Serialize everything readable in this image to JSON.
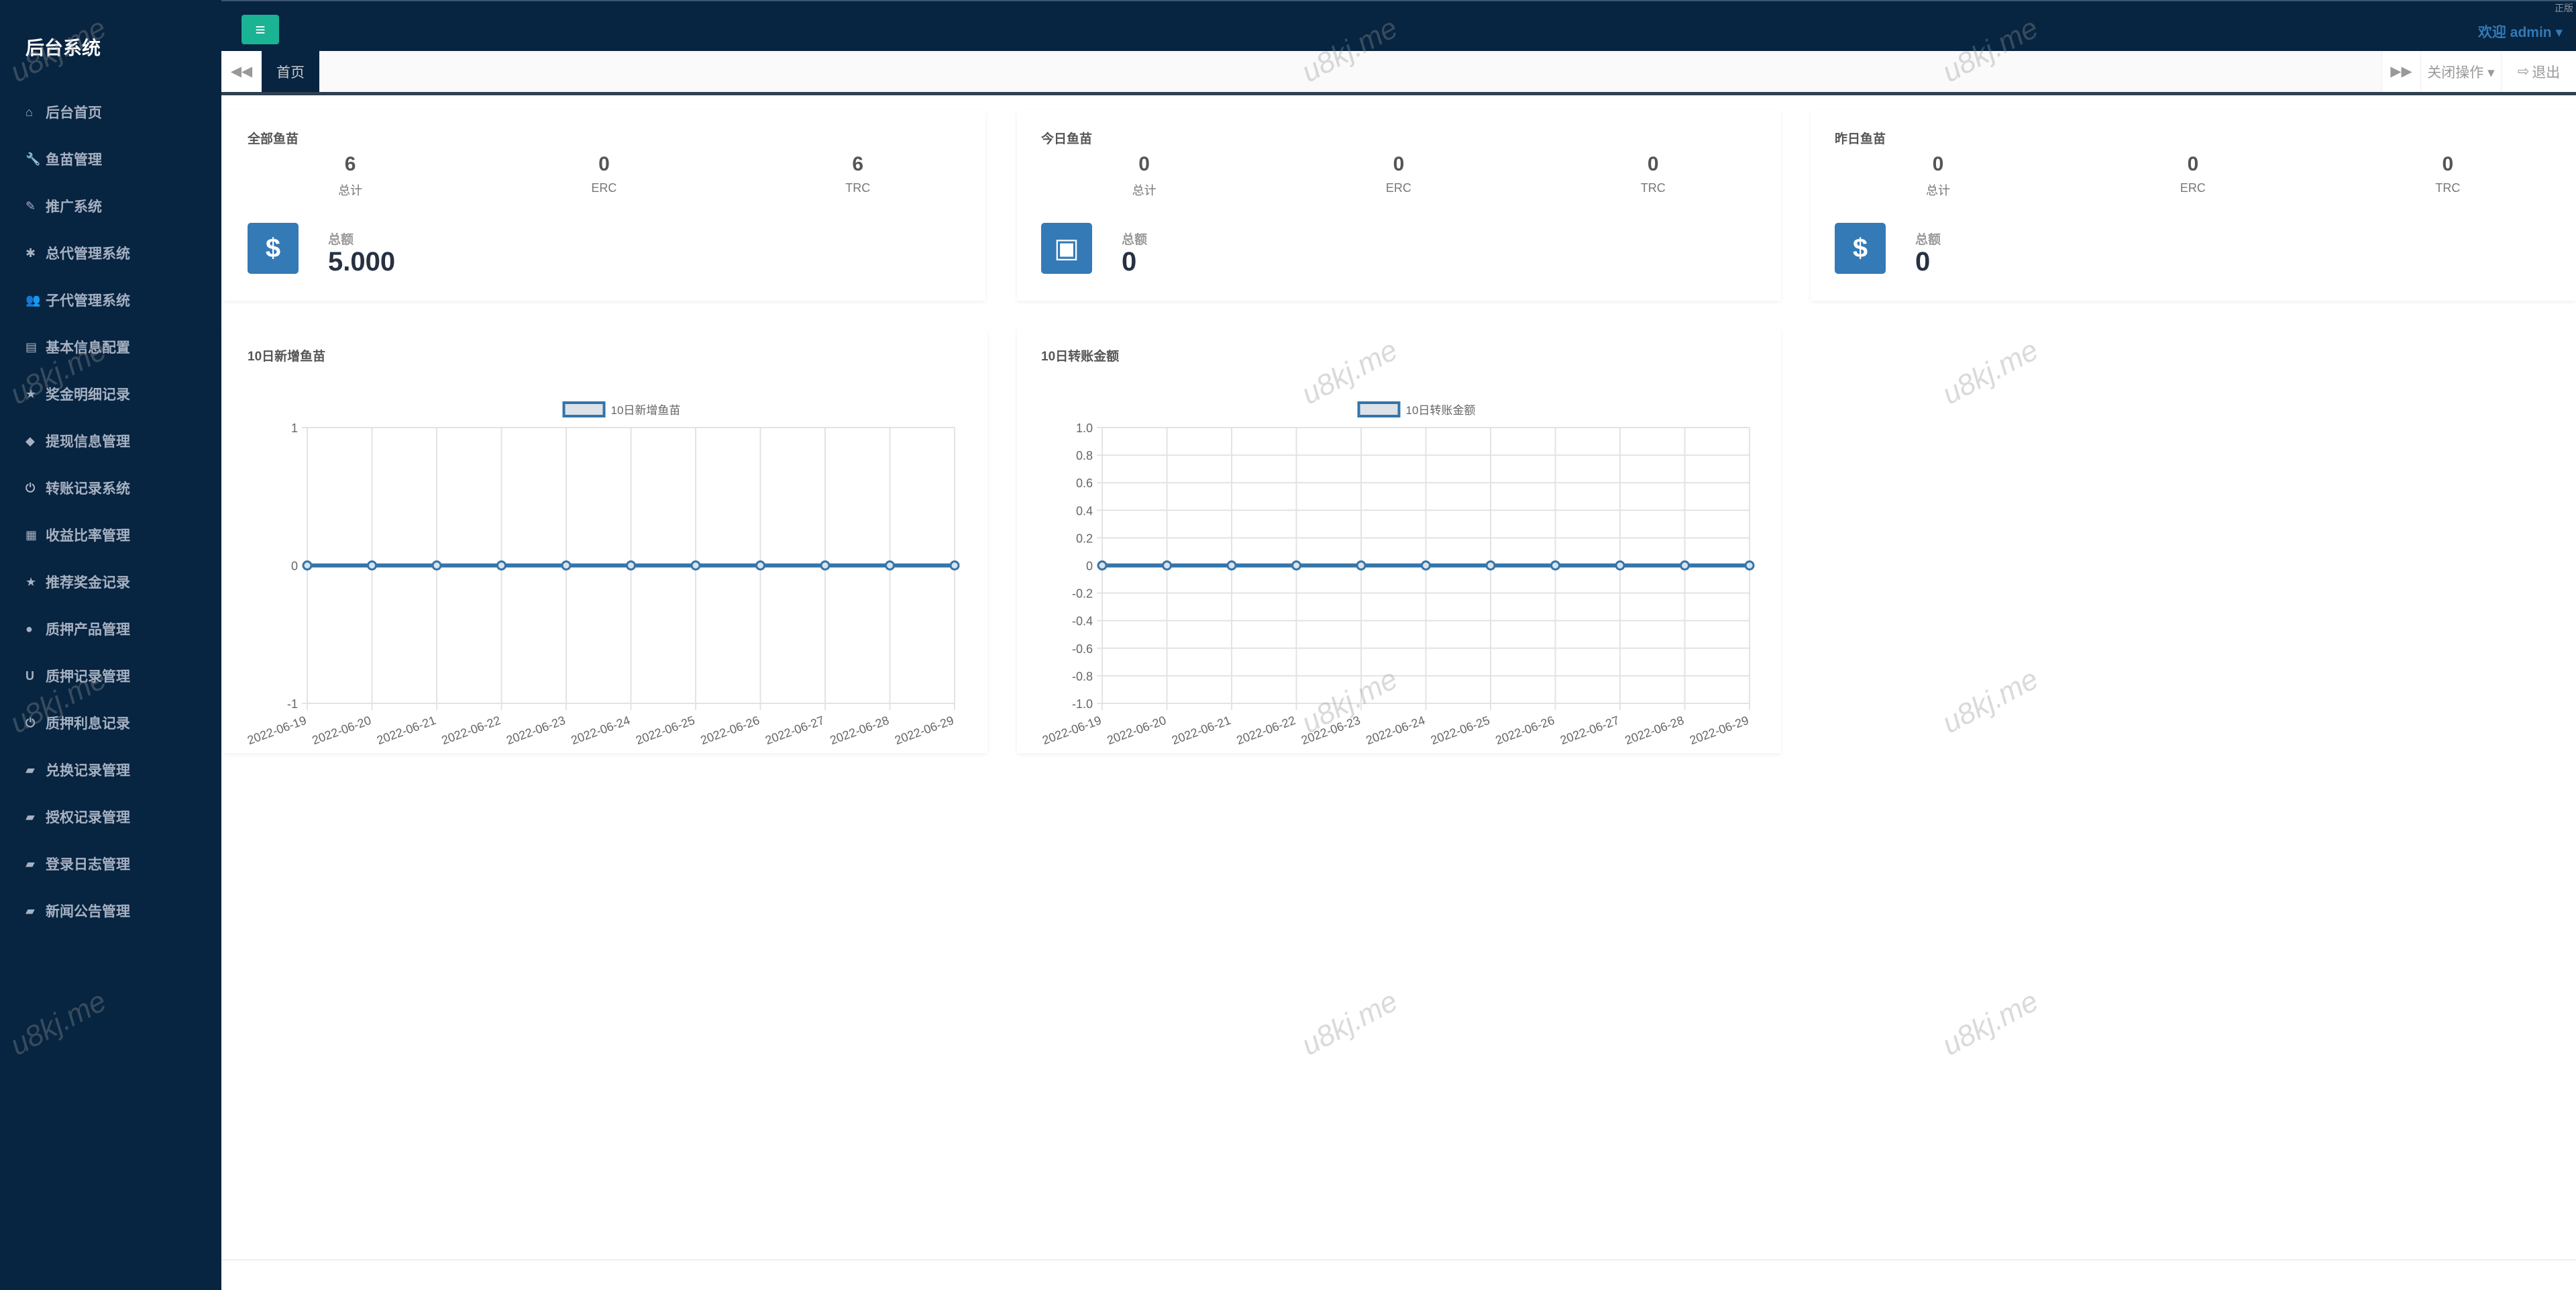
{
  "sidebar": {
    "title": "后台系统",
    "items": [
      {
        "label": "后台首页",
        "icon": "home-icon",
        "glyph": "⌂"
      },
      {
        "label": "鱼苗管理",
        "icon": "wrench-icon",
        "glyph": "🔧"
      },
      {
        "label": "推广系统",
        "icon": "edit-icon",
        "glyph": "✎"
      },
      {
        "label": "总代管理系统",
        "icon": "asterisk-icon",
        "glyph": "✱"
      },
      {
        "label": "子代管理系统",
        "icon": "users-icon",
        "glyph": "👥"
      },
      {
        "label": "基本信息配置",
        "icon": "file-icon",
        "glyph": "▤"
      },
      {
        "label": "奖金明细记录",
        "icon": "star-icon",
        "glyph": "★"
      },
      {
        "label": "提现信息管理",
        "icon": "tag-icon",
        "glyph": "◆"
      },
      {
        "label": "转账记录系统",
        "icon": "power-icon",
        "glyph": "⏻"
      },
      {
        "label": "收益比率管理",
        "icon": "calendar-icon",
        "glyph": "▦"
      },
      {
        "label": "推荐奖金记录",
        "icon": "star-icon",
        "glyph": "★"
      },
      {
        "label": "质押产品管理",
        "icon": "comment-icon",
        "glyph": "●"
      },
      {
        "label": "质押记录管理",
        "icon": "magnet-icon",
        "glyph": "U"
      },
      {
        "label": "质押利息记录",
        "icon": "power-icon",
        "glyph": "⏻"
      },
      {
        "label": "兑换记录管理",
        "icon": "book-icon",
        "glyph": "▰"
      },
      {
        "label": "授权记录管理",
        "icon": "book-icon",
        "glyph": "▰"
      },
      {
        "label": "登录日志管理",
        "icon": "book-icon",
        "glyph": "▰"
      },
      {
        "label": "新闻公告管理",
        "icon": "book-icon",
        "glyph": "▰"
      }
    ]
  },
  "topbar": {
    "menu_icon": "≡",
    "welcome": "欢迎 admin ▾",
    "corner": "正版"
  },
  "tabs": {
    "prev": "◀◀",
    "home": "首页",
    "next": "▶▶",
    "close_ops": "关闭操作 ▾",
    "logout": "退出",
    "logout_icon": "⇨"
  },
  "cards": [
    {
      "title": "全部鱼苗",
      "stats": [
        {
          "value": "6",
          "label": "总计"
        },
        {
          "value": "0",
          "label": "ERC"
        },
        {
          "value": "6",
          "label": "TRC"
        }
      ],
      "icon": "dollar-icon",
      "glyph": "$",
      "total_label": "总额",
      "total": "5.000"
    },
    {
      "title": "今日鱼苗",
      "stats": [
        {
          "value": "0",
          "label": "总计"
        },
        {
          "value": "0",
          "label": "ERC"
        },
        {
          "value": "0",
          "label": "TRC"
        }
      ],
      "icon": "archive-icon",
      "glyph": "▣",
      "total_label": "总额",
      "total": "0"
    },
    {
      "title": "昨日鱼苗",
      "stats": [
        {
          "value": "0",
          "label": "总计"
        },
        {
          "value": "0",
          "label": "ERC"
        },
        {
          "value": "0",
          "label": "TRC"
        }
      ],
      "icon": "dollar-icon",
      "glyph": "$",
      "total_label": "总额",
      "total": "0"
    }
  ],
  "chart_data": [
    {
      "type": "line",
      "title": "10日新增鱼苗",
      "series": [
        {
          "name": "10日新增鱼苗",
          "values": [
            0,
            0,
            0,
            0,
            0,
            0,
            0,
            0,
            0,
            0,
            0
          ]
        }
      ],
      "categories": [
        "2022-06-19",
        "2022-06-20",
        "2022-06-21",
        "2022-06-22",
        "2022-06-23",
        "2022-06-24",
        "2022-06-25",
        "2022-06-26",
        "2022-06-27",
        "2022-06-28",
        "2022-06-29"
      ],
      "ylim": [
        -1,
        1
      ],
      "yticks": [
        "1",
        "0",
        "-1"
      ],
      "grid": true,
      "legend": "top",
      "color": "#3375aa"
    },
    {
      "type": "line",
      "title": "10日转账金额",
      "series": [
        {
          "name": "10日转账金额",
          "values": [
            0,
            0,
            0,
            0,
            0,
            0,
            0,
            0,
            0,
            0,
            0
          ]
        }
      ],
      "categories": [
        "2022-06-19",
        "2022-06-20",
        "2022-06-21",
        "2022-06-22",
        "2022-06-23",
        "2022-06-24",
        "2022-06-25",
        "2022-06-26",
        "2022-06-27",
        "2022-06-28",
        "2022-06-29"
      ],
      "ylim": [
        -1,
        1
      ],
      "yticks": [
        "1.0",
        "0.8",
        "0.6",
        "0.4",
        "0.2",
        "0",
        "-0.2",
        "-0.4",
        "-0.6",
        "-0.8",
        "-1.0"
      ],
      "grid": true,
      "legend": "top",
      "color": "#3375aa"
    }
  ],
  "watermark": "u8kj.me"
}
